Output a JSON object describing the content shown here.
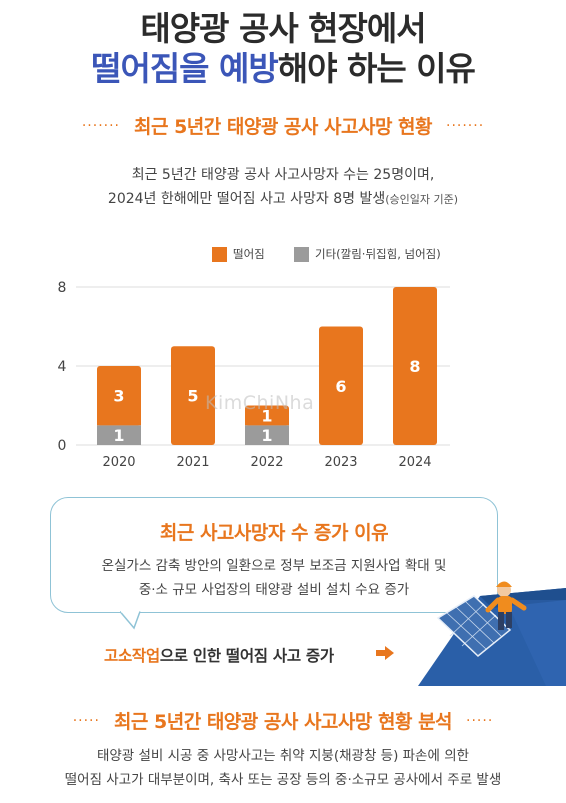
{
  "header": {
    "title_line1": "태양광 공사 현장에서",
    "title_line2_accent": "떨어짐을 예방",
    "title_line2_rest": "해야 하는 이유"
  },
  "section1": {
    "title": "최근 5년간 태양광 공사 사고사망 현황",
    "dots": "·······",
    "desc_line1": "최근 5년간 태양광 공사 사고사망자 수는 25명이며,",
    "desc_line2": "2024년 한해에만 떨어짐 사고 사망자 8명 발생",
    "desc_note": "(승인일자 기준)"
  },
  "colors": {
    "accent_orange": "#e8761e",
    "accent_blue": "#3b56b8",
    "bar_gray": "#9b9b9b",
    "callout_border": "#8fc3d6"
  },
  "chart_data": {
    "type": "bar",
    "stacked": true,
    "categories": [
      "2020",
      "2021",
      "2022",
      "2023",
      "2024"
    ],
    "series": [
      {
        "name": "기타(깔림·뒤집힘, 넘어짐)",
        "color": "#9b9b9b",
        "values": [
          1,
          0,
          1,
          0,
          0
        ]
      },
      {
        "name": "떨어짐",
        "color": "#e8761e",
        "values": [
          3,
          5,
          1,
          6,
          8
        ]
      }
    ],
    "ylim": [
      0,
      8
    ],
    "yticks": [
      0,
      4,
      8
    ],
    "grid": true,
    "legend_position": "top"
  },
  "watermark": "KimChiNha",
  "callout": {
    "title": "최근 사고사망자 수 증가 이유",
    "line1": "온실가스 감축 방안의 일환으로 정부 보조금 지원사업 확대 및",
    "line2": "중·소 규모 사업장의 태양광 설비 설치 수요 증가"
  },
  "high_work": {
    "highlight": "고소작업",
    "rest": "으로 인한 떨어짐 사고 증가"
  },
  "section2": {
    "title": "최근 5년간 태양광 공사 사고사망 현황 분석",
    "dots": "·····",
    "line1": "태양광 설비 시공 중 사망사고는 취약 지붕(채광창 등) 파손에 의한",
    "line2": "떨어짐 사고가 대부분이며, 축사 또는 공장 등의 중·소규모 공사에서 주로 발생"
  },
  "icons": {
    "arrow": "arrow-right-icon",
    "illustration": "worker-on-roof-icon"
  }
}
